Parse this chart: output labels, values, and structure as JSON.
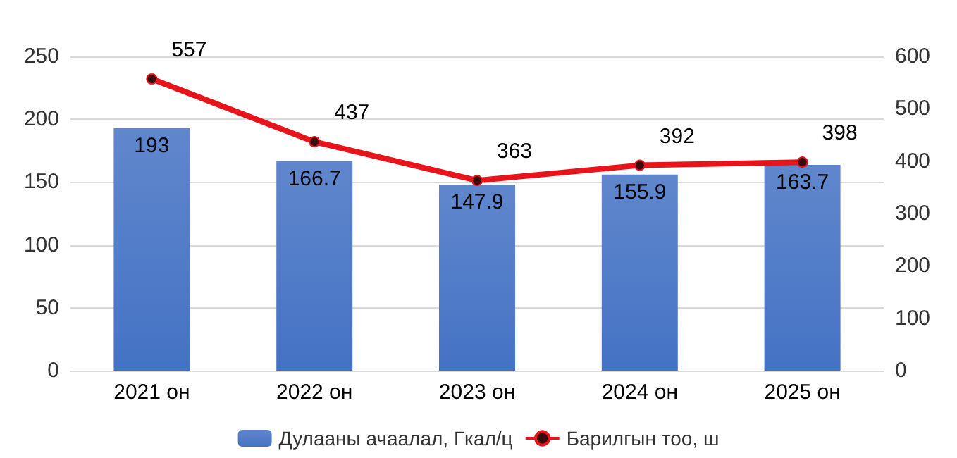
{
  "chart_data": {
    "type": "bar",
    "categories": [
      "2021 он",
      "2022 он",
      "2023 он",
      "2024 он",
      "2025 он"
    ],
    "series": [
      {
        "name": "Дулааны ачаалал, Гкал/ц",
        "color": "#4472c4",
        "values": [
          193,
          166.7,
          147.9,
          155.9,
          163.7
        ]
      },
      {
        "name": "Барилгын тоо, ш",
        "type": "line",
        "axis": "y2",
        "color": "#e8141b",
        "marker": "circle",
        "values": [
          557,
          437,
          363,
          392,
          398
        ]
      }
    ],
    "ylim": [
      0,
      250
    ],
    "yticks": [
      0,
      50,
      100,
      150,
      200,
      250
    ],
    "y2lim": [
      0,
      600
    ],
    "y2ticks": [
      0,
      100,
      200,
      300,
      400,
      500,
      600
    ],
    "data_labels": true,
    "grid": "y",
    "legend": "bottom"
  }
}
